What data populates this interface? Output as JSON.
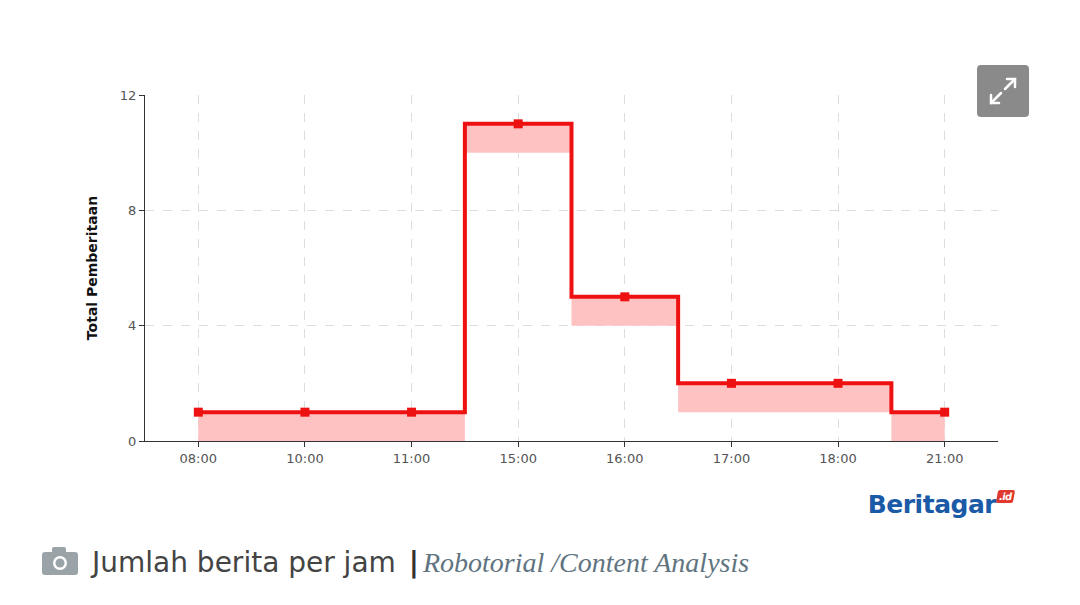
{
  "chart_data": {
    "type": "line",
    "line_style": "step",
    "y_label": "Total Pemberitaan",
    "categories": [
      "08:00",
      "10:00",
      "11:00",
      "15:00",
      "16:00",
      "17:00",
      "18:00",
      "21:00"
    ],
    "values": [
      1,
      1,
      1,
      11,
      5,
      2,
      2,
      1
    ],
    "lower": [
      0,
      0,
      0,
      10,
      4,
      1,
      1,
      0
    ],
    "color": "#ee1111",
    "band_color": "#ffc2c2",
    "marker": "square",
    "ylim": [
      0,
      12
    ],
    "yticks": [
      0,
      4,
      8,
      12
    ],
    "grid": true,
    "logo": "Beritagar",
    "logo_badge": ".id",
    "caption": "Jumlah berita per jam",
    "caption_separator": "|",
    "source": "Robotorial /Content Analysis"
  }
}
